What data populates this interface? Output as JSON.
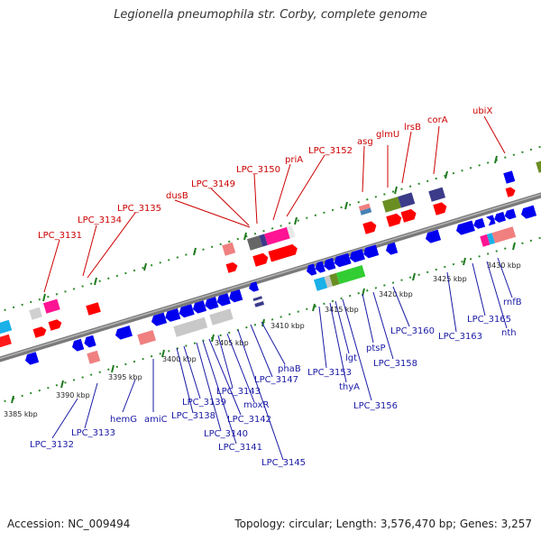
{
  "title": "Legionella pneumophila str. Corby, complete genome",
  "footer": {
    "accession": "Accession: NC_009494",
    "summary": "Topology: circular; Length: 3,576,470 bp; Genes: 3,257"
  },
  "colors": {
    "forward_label": "#cc0000",
    "reverse_label": "#1a1aa6",
    "forward_gene": "#ff0000",
    "reverse_gene": "#0000ee",
    "backbone": "#888888",
    "ruler": "#2e8b2e"
  },
  "ruler_labels": {
    "k3385": "3385 kbp",
    "k3390": "3390 kbp",
    "k3395": "3395 kbp",
    "k3400": "3400 kbp",
    "k3405": "3405 kbp",
    "k3410": "3410 kbp",
    "k3415": "3415 kbp",
    "k3420": "3420 kbp",
    "k3425": "3425 kbp",
    "k3430": "3430 kbp"
  },
  "forward_labels": {
    "lpc3131": "LPC_3131",
    "lpc3134": "LPC_3134",
    "lpc3135": "LPC_3135",
    "dusB": "dusB",
    "lpc3149": "LPC_3149",
    "lpc3150": "LPC_3150",
    "priA": "priA",
    "lpc3152": "LPC_3152",
    "asg": "asg",
    "glmU": "glmU",
    "lrsB": "lrsB",
    "corA": "corA",
    "ubiX": "ubiX"
  },
  "reverse_labels": {
    "lpc3132": "LPC_3132",
    "lpc3133": "LPC_3133",
    "hemG": "hemG",
    "amiC": "amiC",
    "lpc3138": "LPC_3138",
    "lpc3139": "LPC_3139",
    "lpc3140": "LPC_3140",
    "lpc3141": "LPC_3141",
    "lpc3142": "LPC_3142",
    "lpc3143": "LPC_3143",
    "moxR": "moxR",
    "lpc3145": "LPC_3145",
    "lpc3147": "LPC_3147",
    "phaB": "phaB",
    "lpc3153": "LPC_3153",
    "thyA": "thyA",
    "lgt": "lgt",
    "lpc3156": "LPC_3156",
    "ptsP": "ptsP",
    "lpc3158": "LPC_3158",
    "lpc3160": "LPC_3160",
    "lpc3163": "LPC_3163",
    "lpc3165": "LPC_3165",
    "nth": "nth",
    "rnfB": "rnfB"
  }
}
